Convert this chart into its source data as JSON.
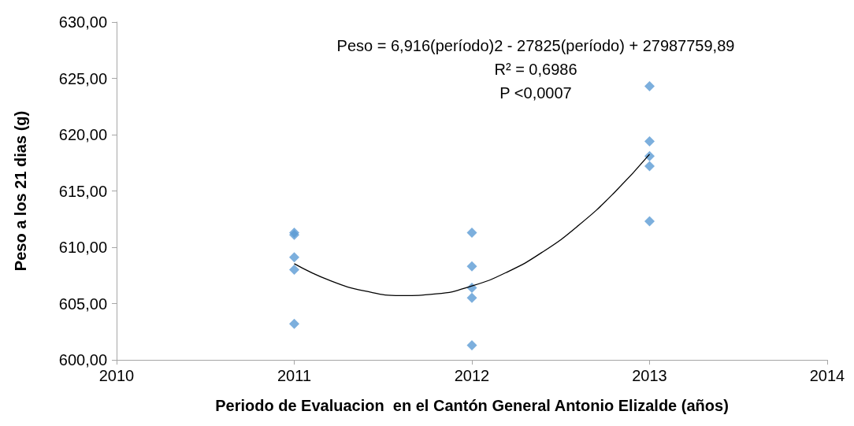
{
  "chart_data": {
    "type": "scatter",
    "xlabel": "Periodo de Evaluacion  en el Cantón General Antonio Elizalde (años)",
    "ylabel": "Peso a los 21 dias (g)",
    "annotations": [
      "Peso = 6,916(período)2 - 27825(período) + 27987759,89",
      "R² = 0,6986",
      "P <0,0007"
    ],
    "series": [
      {
        "color": "#5b9bd5",
        "marker": "diamond",
        "x": [
          2011,
          2011,
          2011,
          2011,
          2011,
          2012,
          2012,
          2012,
          2012,
          2012,
          2013,
          2013,
          2013,
          2013,
          2013
        ],
        "values": [
          611.3,
          611.1,
          609.1,
          608.0,
          603.2,
          611.3,
          608.3,
          606.4,
          605.5,
          601.3,
          624.3,
          619.4,
          618.1,
          617.2,
          612.3
        ]
      },
      {
        "type": "line",
        "color": "#000000",
        "marker": "none",
        "x": [
          2011,
          2011.2,
          2011.4,
          2011.6,
          2011.8,
          2012,
          2012.2,
          2012.4,
          2012.6,
          2012.8,
          2013
        ],
        "values": [
          608.54,
          607.05,
          606.11,
          605.71,
          605.86,
          606.56,
          607.81,
          609.6,
          611.94,
          614.83,
          618.26
        ]
      }
    ],
    "xlim": [
      2010,
      2014
    ],
    "xticks": [
      2010,
      2011,
      2012,
      2013,
      2014
    ],
    "ylim": [
      600,
      630
    ],
    "yticks": [
      {
        "value": 600,
        "label": "600,00"
      },
      {
        "value": 605,
        "label": "605,00"
      },
      {
        "value": 610,
        "label": "610,00"
      },
      {
        "value": 615,
        "label": "615,00"
      },
      {
        "value": 620,
        "label": "620,00"
      },
      {
        "value": 625,
        "label": "625,00"
      },
      {
        "value": 630,
        "label": "630,00"
      }
    ],
    "grid": false
  }
}
